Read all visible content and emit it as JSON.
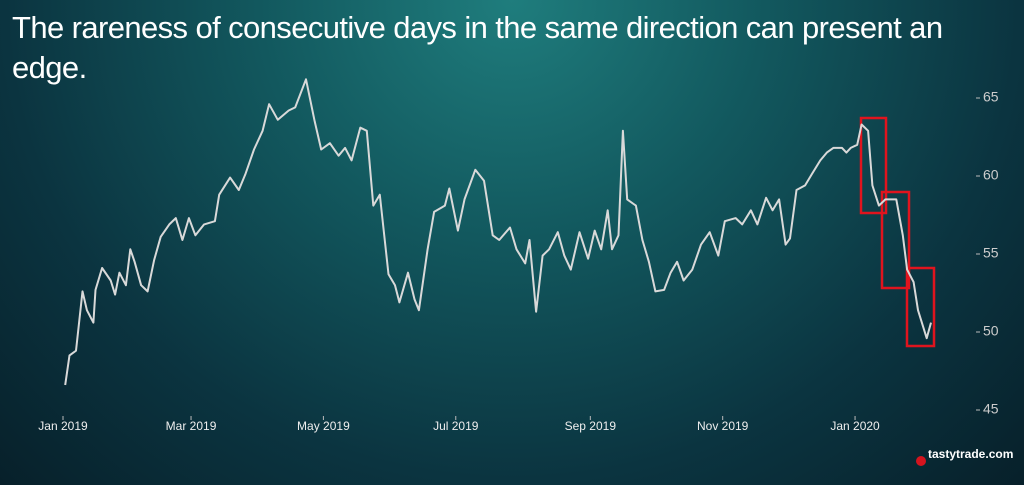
{
  "chart_data": {
    "type": "line",
    "title": "The rareness of consecutive days in the same direction can present an edge.",
    "logo": "tastytrade.com",
    "x": [
      1,
      3,
      6,
      9,
      11,
      14,
      15,
      18,
      22,
      24,
      26,
      29,
      31,
      33,
      36,
      39,
      42,
      45,
      49,
      52,
      55,
      58,
      61,
      65,
      70,
      72,
      77,
      81,
      84,
      88,
      92,
      95,
      99,
      104,
      107,
      112,
      116,
      119,
      123,
      127,
      130,
      133,
      137,
      140,
      143,
      146,
      150,
      153,
      155,
      159,
      162,
      164,
      168,
      171,
      176,
      178,
      182,
      185,
      190,
      194,
      198,
      201,
      206,
      209,
      213,
      215,
      218,
      221,
      224,
      228,
      231,
      234,
      238,
      242,
      245,
      248,
      251,
      253,
      256,
      258,
      260,
      264,
      267,
      270,
      273,
      277,
      280,
      283,
      286,
      290,
      294,
      298,
      302,
      305,
      310,
      313,
      317,
      320,
      324,
      327,
      330,
      333,
      335,
      338,
      342,
      345,
      349,
      352,
      355,
      359,
      361,
      363,
      366,
      368,
      371,
      373,
      376,
      379,
      384,
      387,
      389,
      392,
      394,
      398,
      400
    ],
    "series": [
      {
        "color": "#d9d9d9",
        "values": [
          46.6,
          48.5,
          48.8,
          52.6,
          51.4,
          50.6,
          52.7,
          54.1,
          53.3,
          52.4,
          53.8,
          53.0,
          55.3,
          54.5,
          53.0,
          52.6,
          54.6,
          56.1,
          56.9,
          57.3,
          55.9,
          57.3,
          56.2,
          56.9,
          57.1,
          58.8,
          59.9,
          59.1,
          60.1,
          61.7,
          62.9,
          64.6,
          63.6,
          64.2,
          64.4,
          66.2,
          63.5,
          61.7,
          62.1,
          61.3,
          61.8,
          61.0,
          63.1,
          62.9,
          58.1,
          58.8,
          53.7,
          53.0,
          51.9,
          53.8,
          52.1,
          51.4,
          55.3,
          57.7,
          58.1,
          59.2,
          56.5,
          58.5,
          60.4,
          59.7,
          56.2,
          55.9,
          56.7,
          55.3,
          54.4,
          55.9,
          51.3,
          54.9,
          55.3,
          56.4,
          54.9,
          54.0,
          56.4,
          54.7,
          56.5,
          55.3,
          57.8,
          55.3,
          56.2,
          62.9,
          58.5,
          58.1,
          55.9,
          54.5,
          52.6,
          52.7,
          53.8,
          54.5,
          53.3,
          54.0,
          55.6,
          56.4,
          54.9,
          57.1,
          57.3,
          56.9,
          57.8,
          56.9,
          58.6,
          57.8,
          58.5,
          55.6,
          56.0,
          59.1,
          59.4,
          60.1,
          61.0,
          61.5,
          61.8,
          61.8,
          61.5,
          61.8,
          62.0,
          63.3,
          62.9,
          59.4,
          58.1,
          58.5,
          58.5,
          56.2,
          54.0,
          53.2,
          51.4,
          49.6,
          50.6
        ]
      }
    ],
    "xlim": [
      0,
      400
    ],
    "xticks": [
      {
        "value": 0,
        "label": "Jan 2019"
      },
      {
        "value": 59,
        "label": "Mar 2019"
      },
      {
        "value": 120,
        "label": "May 2019"
      },
      {
        "value": 181,
        "label": "Jul 2019"
      },
      {
        "value": 243,
        "label": "Sep 2019"
      },
      {
        "value": 304,
        "label": "Nov 2019"
      },
      {
        "value": 365,
        "label": "Jan 2020"
      }
    ],
    "ylim": [
      45,
      67
    ],
    "yticks": [
      45,
      50,
      55,
      60,
      65
    ]
  }
}
